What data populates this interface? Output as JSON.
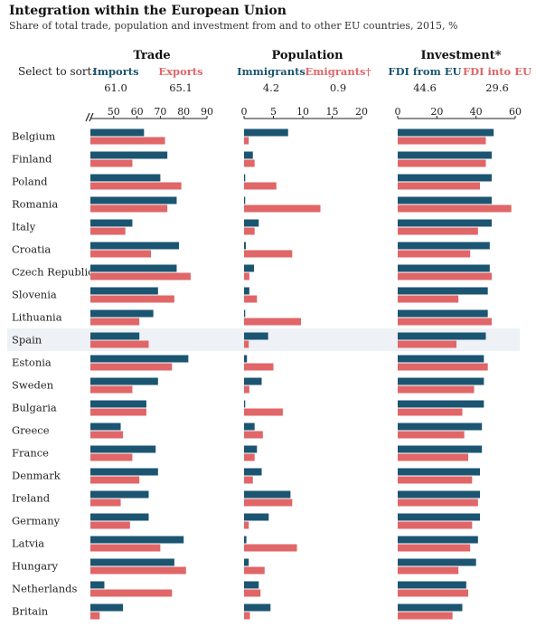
{
  "colors": {
    "blue": "#1b5571",
    "red": "#e06668",
    "highlight": "#eef1f5",
    "axis": "#222222"
  },
  "header": {
    "title": "Integration within the European Union",
    "subtitle": "Share of total trade, population and investment from and to other EU countries, 2015, %",
    "sort_label": "Select to sort:"
  },
  "highlight_country": "Spain",
  "chart_data": [
    {
      "type": "bar",
      "title": "Trade",
      "axis_break": true,
      "ticks": [
        50,
        60,
        70,
        80,
        90
      ],
      "xlim": [
        40,
        90
      ],
      "legend": [
        {
          "label": "Imports",
          "average": "61.0",
          "color": "#1b5571"
        },
        {
          "label": "Exports",
          "average": "65.1",
          "color": "#e06668"
        }
      ],
      "categories": [
        "Belgium",
        "Finland",
        "Poland",
        "Romania",
        "Italy",
        "Croatia",
        "Czech Republic",
        "Slovenia",
        "Lithuania",
        "Spain",
        "Estonia",
        "Sweden",
        "Bulgaria",
        "Greece",
        "France",
        "Denmark",
        "Ireland",
        "Germany",
        "Latvia",
        "Hungary",
        "Netherlands",
        "Britain"
      ],
      "series": [
        {
          "name": "Imports",
          "values": [
            63,
            73,
            70,
            77,
            58,
            78,
            77,
            69,
            67,
            61,
            82,
            69,
            64,
            53,
            68,
            69,
            65,
            65,
            80,
            76,
            46,
            54
          ]
        },
        {
          "name": "Exports",
          "values": [
            72,
            58,
            79,
            73,
            55,
            66,
            83,
            76,
            61,
            65,
            75,
            58,
            64,
            54,
            58,
            61,
            53,
            57,
            70,
            81,
            75,
            44
          ]
        }
      ]
    },
    {
      "type": "bar",
      "title": "Population",
      "ticks": [
        0,
        5,
        10,
        15,
        20
      ],
      "xlim": [
        0,
        20
      ],
      "legend": [
        {
          "label": "Immigrants",
          "average": "4.2",
          "color": "#1b5571"
        },
        {
          "label": "Emigrants†",
          "average": "0.9",
          "color": "#e06668"
        }
      ],
      "categories": [
        "Belgium",
        "Finland",
        "Poland",
        "Romania",
        "Italy",
        "Croatia",
        "Czech Republic",
        "Slovenia",
        "Lithuania",
        "Spain",
        "Estonia",
        "Sweden",
        "Bulgaria",
        "Greece",
        "France",
        "Denmark",
        "Ireland",
        "Germany",
        "Latvia",
        "Hungary",
        "Netherlands",
        "Britain"
      ],
      "series": [
        {
          "name": "Immigrants",
          "values": [
            7.5,
            1.5,
            0.2,
            0.2,
            2.5,
            0.3,
            1.7,
            0.9,
            0.2,
            4.1,
            0.5,
            3.0,
            0.2,
            1.8,
            2.2,
            3.0,
            7.9,
            4.2,
            0.4,
            0.8,
            2.5,
            4.5
          ]
        },
        {
          "name": "Emigrants†",
          "values": [
            0.8,
            1.8,
            5.5,
            13.0,
            1.8,
            8.2,
            0.9,
            2.2,
            9.7,
            0.8,
            5.0,
            0.9,
            6.6,
            3.2,
            1.8,
            1.5,
            8.2,
            0.8,
            9.0,
            3.5,
            2.8,
            1.0
          ]
        }
      ]
    },
    {
      "type": "bar",
      "title": "Investment*",
      "ticks": [
        0,
        20,
        40,
        60
      ],
      "xlim": [
        0,
        60
      ],
      "legend": [
        {
          "label": "FDI from EU",
          "average": "44.6",
          "color": "#1b5571"
        },
        {
          "label": "FDI into EU",
          "average": "29.6",
          "color": "#e06668"
        }
      ],
      "categories": [
        "Belgium",
        "Finland",
        "Poland",
        "Romania",
        "Italy",
        "Croatia",
        "Czech Republic",
        "Slovenia",
        "Lithuania",
        "Spain",
        "Estonia",
        "Sweden",
        "Bulgaria",
        "Greece",
        "France",
        "Denmark",
        "Ireland",
        "Germany",
        "Latvia",
        "Hungary",
        "Netherlands",
        "Britain"
      ],
      "series": [
        {
          "name": "FDI from EU",
          "values": [
            49,
            48,
            48,
            48,
            48,
            47,
            47,
            46,
            46,
            45,
            44,
            44,
            44,
            43,
            43,
            42,
            42,
            42,
            41,
            40,
            35,
            33
          ]
        },
        {
          "name": "FDI into EU",
          "values": [
            45,
            45,
            42,
            58,
            41,
            37,
            48,
            31,
            48,
            30,
            46,
            39,
            33,
            34,
            36,
            38,
            41,
            38,
            37,
            31,
            36,
            28
          ]
        }
      ]
    }
  ]
}
